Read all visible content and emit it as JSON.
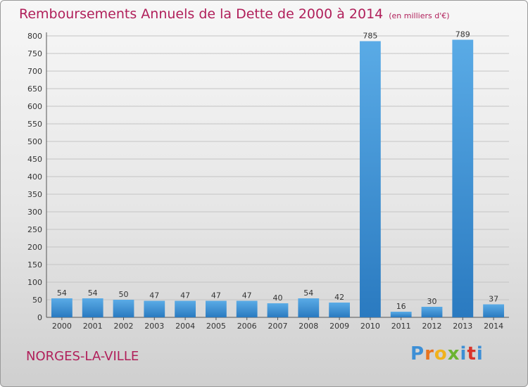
{
  "header": {
    "title": "Remboursements Annuels de la Dette de 2000 à 2014",
    "unit": "(en milliers d'€)"
  },
  "footer": {
    "town": "NORGES-LA-VILLE",
    "logo_letters": [
      "P",
      "r",
      "o",
      "x",
      "i",
      "t",
      "i"
    ],
    "logo_colors": [
      "#3d8fd6",
      "#e8731e",
      "#f0b21c",
      "#6bb431",
      "#3d8fd6",
      "#d9342b",
      "#3d8fd6"
    ]
  },
  "chart_data": {
    "type": "bar",
    "title": "Remboursements Annuels de la Dette de 2000 à 2014",
    "subtitle": "(en milliers d'€)",
    "categories": [
      "2000",
      "2001",
      "2002",
      "2003",
      "2004",
      "2005",
      "2006",
      "2007",
      "2008",
      "2009",
      "2010",
      "2011",
      "2012",
      "2013",
      "2014"
    ],
    "values": [
      54,
      54,
      50,
      47,
      47,
      47,
      47,
      40,
      54,
      42,
      785,
      16,
      30,
      789,
      37
    ],
    "ylim": [
      0,
      800
    ],
    "yticks": [
      0,
      50,
      100,
      150,
      200,
      250,
      300,
      350,
      400,
      450,
      500,
      550,
      600,
      650,
      700,
      750,
      800
    ],
    "grid": true,
    "legend": "none",
    "bar_color_top": "#5aabe6",
    "bar_color_bottom": "#2a7ac0"
  }
}
